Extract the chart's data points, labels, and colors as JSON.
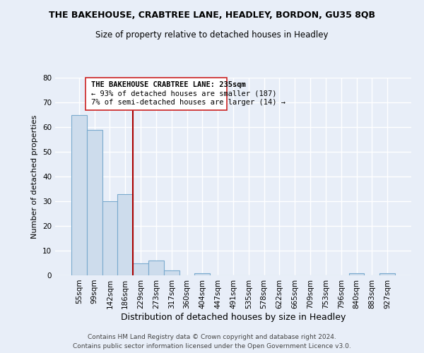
{
  "title": "THE BAKEHOUSE, CRABTREE LANE, HEADLEY, BORDON, GU35 8QB",
  "subtitle": "Size of property relative to detached houses in Headley",
  "xlabel": "Distribution of detached houses by size in Headley",
  "ylabel": "Number of detached properties",
  "bar_labels": [
    "55sqm",
    "99sqm",
    "142sqm",
    "186sqm",
    "229sqm",
    "273sqm",
    "317sqm",
    "360sqm",
    "404sqm",
    "447sqm",
    "491sqm",
    "535sqm",
    "578sqm",
    "622sqm",
    "665sqm",
    "709sqm",
    "753sqm",
    "796sqm",
    "840sqm",
    "883sqm",
    "927sqm"
  ],
  "bar_values": [
    65,
    59,
    30,
    33,
    5,
    6,
    2,
    0,
    1,
    0,
    0,
    0,
    0,
    0,
    0,
    0,
    0,
    0,
    1,
    0,
    1
  ],
  "bar_color": "#cddcec",
  "bar_edge_color": "#7aaace",
  "vline_x_index": 4,
  "vline_color": "#aa0000",
  "ylim": [
    0,
    80
  ],
  "yticks": [
    0,
    10,
    20,
    30,
    40,
    50,
    60,
    70,
    80
  ],
  "legend_title": "THE BAKEHOUSE CRABTREE LANE: 235sqm",
  "legend_line1": "← 93% of detached houses are smaller (187)",
  "legend_line2": "7% of semi-detached houses are larger (14) →",
  "background_color": "#e8eef8",
  "grid_color": "#ffffff",
  "footer_line1": "Contains HM Land Registry data © Crown copyright and database right 2024.",
  "footer_line2": "Contains public sector information licensed under the Open Government Licence v3.0."
}
